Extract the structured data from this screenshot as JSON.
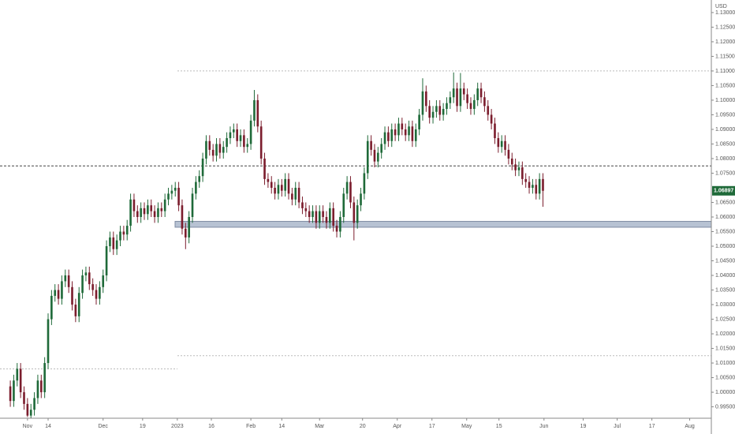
{
  "chart_data": {
    "type": "candlestick",
    "currency": "USD",
    "last_price": 1.06897,
    "up_color": "#1f6a39",
    "down_color": "#7b1d2d",
    "xlim": [
      -3,
      204
    ],
    "ylim": [
      0.9911,
      1.1343
    ],
    "xticks": [
      {
        "value": 5,
        "label": "Nov"
      },
      {
        "value": 11,
        "label": "14"
      },
      {
        "value": 27,
        "label": "Dec"
      },
      {
        "value": 38.5,
        "label": "19"
      },
      {
        "value": 48.6,
        "label": "2023"
      },
      {
        "value": 58.5,
        "label": "16"
      },
      {
        "value": 70,
        "label": "Feb"
      },
      {
        "value": 79,
        "label": "14"
      },
      {
        "value": 90,
        "label": "Mar"
      },
      {
        "value": 102.5,
        "label": "20"
      },
      {
        "value": 112.6,
        "label": "Apr"
      },
      {
        "value": 122.7,
        "label": "17"
      },
      {
        "value": 132.8,
        "label": "May"
      },
      {
        "value": 142.2,
        "label": "15"
      },
      {
        "value": 155.3,
        "label": "Jun"
      },
      {
        "value": 166.7,
        "label": "19"
      },
      {
        "value": 176.6,
        "label": "Jul"
      },
      {
        "value": 186.7,
        "label": "17"
      },
      {
        "value": 197.7,
        "label": "Aug"
      }
    ],
    "yticks": [
      {
        "value": 1.13,
        "label": "1.13000"
      },
      {
        "value": 1.125,
        "label": "1.12500"
      },
      {
        "value": 1.12,
        "label": "1.12000"
      },
      {
        "value": 1.115,
        "label": "1.11500"
      },
      {
        "value": 1.11,
        "label": "1.11000"
      },
      {
        "value": 1.105,
        "label": "1.10500"
      },
      {
        "value": 1.1,
        "label": "1.10000"
      },
      {
        "value": 1.095,
        "label": "1.09500"
      },
      {
        "value": 1.09,
        "label": "1.09000"
      },
      {
        "value": 1.085,
        "label": "1.08500"
      },
      {
        "value": 1.08,
        "label": "1.08000"
      },
      {
        "value": 1.075,
        "label": "1.07500"
      },
      {
        "value": 1.065,
        "label": "1.06500"
      },
      {
        "value": 1.06,
        "label": "1.06000"
      },
      {
        "value": 1.055,
        "label": "1.05500"
      },
      {
        "value": 1.05,
        "label": "1.05000"
      },
      {
        "value": 1.045,
        "label": "1.04500"
      },
      {
        "value": 1.04,
        "label": "1.04000"
      },
      {
        "value": 1.035,
        "label": "1.03500"
      },
      {
        "value": 1.03,
        "label": "1.03000"
      },
      {
        "value": 1.025,
        "label": "1.02500"
      },
      {
        "value": 1.02,
        "label": "1.02000"
      },
      {
        "value": 1.015,
        "label": "1.01500"
      },
      {
        "value": 1.01,
        "label": "1.01000"
      },
      {
        "value": 1.005,
        "label": "1.00500"
      },
      {
        "value": 1.0,
        "label": "1.00000"
      },
      {
        "value": 0.995,
        "label": "0.99500"
      }
    ],
    "hlines": [
      {
        "value": 1.0775,
        "style": "dashed"
      },
      {
        "value": 1.11,
        "style": "dotted"
      },
      {
        "value": 1.0125,
        "style": "dotted"
      },
      {
        "value": 1.008,
        "style": "dotted"
      }
    ],
    "zone": [
      1.0565,
      1.0585
    ],
    "open": [
      1.002,
      0.997,
      1.004,
      1.008,
      1.0,
      0.996,
      0.992,
      0.994,
      0.998,
      1.004,
      1.0,
      1.01,
      1.025,
      1.033,
      1.035,
      1.032,
      1.038,
      1.04,
      1.036,
      1.03,
      1.026,
      1.034,
      1.04,
      1.041,
      1.037,
      1.035,
      1.032,
      1.036,
      1.04,
      1.05,
      1.053,
      1.049,
      1.052,
      1.055,
      1.054,
      1.057,
      1.066,
      1.062,
      1.06,
      1.063,
      1.061,
      1.064,
      1.062,
      1.06,
      1.063,
      1.062,
      1.066,
      1.068,
      1.069,
      1.07,
      1.064,
      1.056,
      1.053,
      1.06,
      1.068,
      1.072,
      1.074,
      1.08,
      1.086,
      1.083,
      1.081,
      1.085,
      1.082,
      1.084,
      1.087,
      1.089,
      1.09,
      1.086,
      1.088,
      1.084,
      1.085,
      1.093,
      1.1,
      1.091,
      1.08,
      1.073,
      1.072,
      1.07,
      1.068,
      1.071,
      1.069,
      1.073,
      1.068,
      1.066,
      1.07,
      1.065,
      1.063,
      1.062,
      1.06,
      1.062,
      1.058,
      1.062,
      1.06,
      1.058,
      1.063,
      1.057,
      1.055,
      1.06,
      1.068,
      1.072,
      1.065,
      1.058,
      1.064,
      1.068,
      1.075,
      1.086,
      1.083,
      1.079,
      1.082,
      1.085,
      1.089,
      1.086,
      1.09,
      1.088,
      1.092,
      1.09,
      1.088,
      1.091,
      1.086,
      1.09,
      1.095,
      1.103,
      1.098,
      1.094,
      1.096,
      1.098,
      1.095,
      1.097,
      1.099,
      1.101,
      1.104,
      1.098,
      1.104,
      1.102,
      1.099,
      1.097,
      1.1,
      1.104,
      1.101,
      1.098,
      1.095,
      1.092,
      1.087,
      1.084,
      1.086,
      1.083,
      1.08,
      1.078,
      1.076,
      1.077,
      1.073,
      1.072,
      1.07,
      1.071,
      1.068,
      1.073
    ],
    "high": [
      1.004,
      1.006,
      1.01,
      1.01,
      1.002,
      0.998,
      0.996,
      1.0,
      1.006,
      1.006,
      1.012,
      1.027,
      1.035,
      1.037,
      1.037,
      1.04,
      1.042,
      1.042,
      1.038,
      1.032,
      1.036,
      1.042,
      1.043,
      1.043,
      1.039,
      1.037,
      1.038,
      1.042,
      1.052,
      1.055,
      1.055,
      1.054,
      1.057,
      1.057,
      1.059,
      1.068,
      1.068,
      1.064,
      1.065,
      1.065,
      1.066,
      1.066,
      1.064,
      1.065,
      1.065,
      1.068,
      1.07,
      1.071,
      1.072,
      1.072,
      1.066,
      1.058,
      1.062,
      1.07,
      1.074,
      1.076,
      1.082,
      1.088,
      1.088,
      1.085,
      1.087,
      1.087,
      1.086,
      1.089,
      1.091,
      1.092,
      1.092,
      1.09,
      1.09,
      1.087,
      1.095,
      1.1035,
      1.102,
      1.093,
      1.082,
      1.075,
      1.074,
      1.072,
      1.073,
      1.073,
      1.075,
      1.075,
      1.07,
      1.072,
      1.072,
      1.067,
      1.065,
      1.064,
      1.064,
      1.064,
      1.064,
      1.064,
      1.062,
      1.065,
      1.065,
      1.059,
      1.062,
      1.07,
      1.074,
      1.074,
      1.067,
      1.066,
      1.07,
      1.077,
      1.088,
      1.088,
      1.085,
      1.084,
      1.087,
      1.091,
      1.091,
      1.092,
      1.092,
      1.094,
      1.094,
      1.092,
      1.093,
      1.093,
      1.092,
      1.097,
      1.1075,
      1.105,
      1.1,
      1.098,
      1.1,
      1.1,
      1.099,
      1.101,
      1.103,
      1.1095,
      1.106,
      1.1093,
      1.106,
      1.104,
      1.101,
      1.102,
      1.106,
      1.106,
      1.103,
      1.1,
      1.097,
      1.094,
      1.089,
      1.088,
      1.088,
      1.085,
      1.082,
      1.08,
      1.079,
      1.079,
      1.075,
      1.074,
      1.073,
      1.073,
      1.075,
      1.075
    ],
    "low": [
      0.995,
      0.995,
      1.002,
      0.998,
      0.994,
      0.9915,
      0.9912,
      0.992,
      0.996,
      0.998,
      0.998,
      1.008,
      1.023,
      1.031,
      1.03,
      1.03,
      1.036,
      1.034,
      1.028,
      1.024,
      1.024,
      1.032,
      1.038,
      1.035,
      1.033,
      1.03,
      1.03,
      1.034,
      1.038,
      1.048,
      1.047,
      1.047,
      1.05,
      1.052,
      1.052,
      1.055,
      1.06,
      1.058,
      1.058,
      1.059,
      1.059,
      1.06,
      1.058,
      1.058,
      1.06,
      1.06,
      1.064,
      1.066,
      1.067,
      1.062,
      1.054,
      1.049,
      1.051,
      1.058,
      1.066,
      1.07,
      1.072,
      1.078,
      1.081,
      1.079,
      1.079,
      1.08,
      1.08,
      1.082,
      1.085,
      1.087,
      1.084,
      1.084,
      1.082,
      1.082,
      1.083,
      1.091,
      1.089,
      1.078,
      1.071,
      1.07,
      1.068,
      1.066,
      1.066,
      1.067,
      1.067,
      1.066,
      1.064,
      1.064,
      1.063,
      1.061,
      1.06,
      1.058,
      1.058,
      1.056,
      1.056,
      1.058,
      1.056,
      1.056,
      1.055,
      1.053,
      1.053,
      1.058,
      1.066,
      1.063,
      1.052,
      1.056,
      1.062,
      1.066,
      1.073,
      1.081,
      1.077,
      1.077,
      1.08,
      1.083,
      1.084,
      1.084,
      1.086,
      1.086,
      1.088,
      1.086,
      1.086,
      1.084,
      1.084,
      1.088,
      1.093,
      1.096,
      1.092,
      1.092,
      1.094,
      1.093,
      1.093,
      1.095,
      1.097,
      1.099,
      1.096,
      1.096,
      1.1,
      1.097,
      1.095,
      1.095,
      1.098,
      1.099,
      1.096,
      1.093,
      1.09,
      1.085,
      1.082,
      1.082,
      1.081,
      1.078,
      1.076,
      1.074,
      1.074,
      1.071,
      1.07,
      1.068,
      1.068,
      1.066,
      1.066,
      1.0635
    ],
    "close": [
      0.997,
      1.004,
      1.008,
      1.0,
      0.996,
      0.992,
      0.994,
      0.998,
      1.004,
      1.0,
      1.01,
      1.025,
      1.033,
      1.035,
      1.032,
      1.038,
      1.04,
      1.036,
      1.03,
      1.026,
      1.034,
      1.04,
      1.041,
      1.037,
      1.035,
      1.032,
      1.036,
      1.04,
      1.05,
      1.053,
      1.049,
      1.052,
      1.055,
      1.054,
      1.057,
      1.066,
      1.062,
      1.06,
      1.063,
      1.061,
      1.064,
      1.062,
      1.06,
      1.063,
      1.062,
      1.066,
      1.068,
      1.069,
      1.07,
      1.064,
      1.056,
      1.053,
      1.06,
      1.068,
      1.072,
      1.074,
      1.08,
      1.086,
      1.083,
      1.081,
      1.085,
      1.082,
      1.084,
      1.087,
      1.089,
      1.09,
      1.086,
      1.088,
      1.084,
      1.085,
      1.093,
      1.1,
      1.091,
      1.08,
      1.073,
      1.072,
      1.07,
      1.068,
      1.071,
      1.069,
      1.073,
      1.068,
      1.066,
      1.07,
      1.065,
      1.063,
      1.062,
      1.06,
      1.062,
      1.058,
      1.062,
      1.06,
      1.058,
      1.063,
      1.057,
      1.055,
      1.06,
      1.068,
      1.072,
      1.065,
      1.058,
      1.064,
      1.068,
      1.075,
      1.086,
      1.083,
      1.079,
      1.082,
      1.085,
      1.089,
      1.086,
      1.09,
      1.088,
      1.092,
      1.09,
      1.088,
      1.091,
      1.086,
      1.09,
      1.095,
      1.103,
      1.098,
      1.094,
      1.096,
      1.098,
      1.095,
      1.097,
      1.099,
      1.101,
      1.104,
      1.098,
      1.104,
      1.102,
      1.099,
      1.097,
      1.1,
      1.104,
      1.101,
      1.098,
      1.095,
      1.092,
      1.087,
      1.084,
      1.086,
      1.083,
      1.08,
      1.078,
      1.076,
      1.077,
      1.073,
      1.072,
      1.07,
      1.071,
      1.068,
      1.073,
      1.06897
    ]
  }
}
